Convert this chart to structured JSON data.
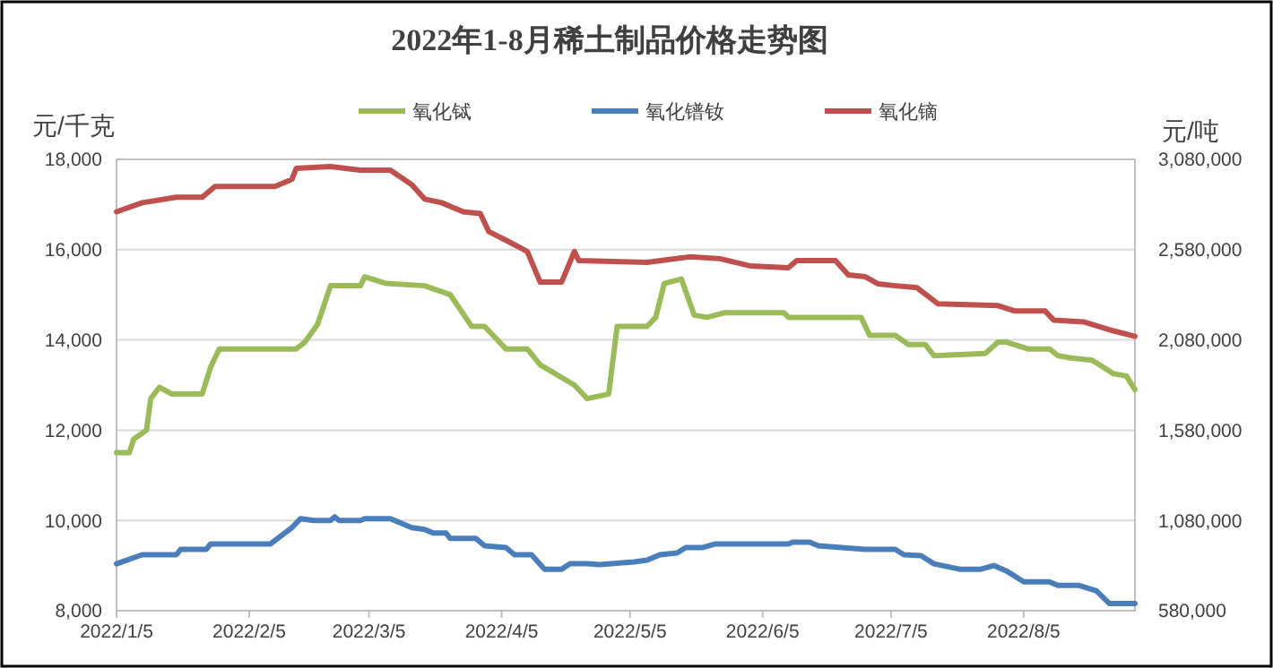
{
  "chart_data": {
    "type": "line",
    "title": "2022年1-8月稀土制品价格走势图",
    "ylabel": "元/千克",
    "y2label": "元/吨",
    "xlim": [
      "2022-01-05",
      "2022-08-31"
    ],
    "xticks": [
      {
        "value": "2022-01-05",
        "label": "2022/1/5"
      },
      {
        "value": "2022-02-05",
        "label": "2022/2/5"
      },
      {
        "value": "2022-03-05",
        "label": "2022/3/5"
      },
      {
        "value": "2022-04-05",
        "label": "2022/4/5"
      },
      {
        "value": "2022-05-05",
        "label": "2022/5/5"
      },
      {
        "value": "2022-06-05",
        "label": "2022/6/5"
      },
      {
        "value": "2022-07-05",
        "label": "2022/7/5"
      },
      {
        "value": "2022-08-05",
        "label": "2022/8/5"
      }
    ],
    "ylim": [
      8000,
      18000
    ],
    "yticks": [
      {
        "value": 8000,
        "label": "8,000"
      },
      {
        "value": 10000,
        "label": "10,000"
      },
      {
        "value": 12000,
        "label": "12,000"
      },
      {
        "value": 14000,
        "label": "14,000"
      },
      {
        "value": 16000,
        "label": "16,000"
      },
      {
        "value": 18000,
        "label": "18,000"
      }
    ],
    "y2lim": [
      580000,
      3080000
    ],
    "y2ticks": [
      {
        "value": 580000,
        "label": "580,000"
      },
      {
        "value": 1080000,
        "label": "1,080,000"
      },
      {
        "value": 1580000,
        "label": "1,580,000"
      },
      {
        "value": 2080000,
        "label": "2,080,000"
      },
      {
        "value": 2580000,
        "label": "2,580,000"
      },
      {
        "value": 3080000,
        "label": "3,080,000"
      }
    ],
    "grid": "y",
    "legend": "top",
    "marker": "none",
    "line_style": "solid",
    "series": [
      {
        "name": "氧化铽",
        "color": "#9bbb59",
        "x": [
          "2022-01-05",
          "2022-01-08",
          "2022-01-09",
          "2022-01-12",
          "2022-01-13",
          "2022-01-15",
          "2022-01-18",
          "2022-01-25",
          "2022-01-27",
          "2022-01-29",
          "2022-02-16",
          "2022-02-18",
          "2022-02-21",
          "2022-02-24",
          "2022-03-03",
          "2022-03-04",
          "2022-03-09",
          "2022-03-18",
          "2022-03-24",
          "2022-03-29",
          "2022-04-01",
          "2022-04-06",
          "2022-04-11",
          "2022-04-14",
          "2022-04-22",
          "2022-04-25",
          "2022-04-30",
          "2022-05-02",
          "2022-05-09",
          "2022-05-11",
          "2022-05-13",
          "2022-05-17",
          "2022-05-20",
          "2022-05-23",
          "2022-05-27",
          "2022-06-10",
          "2022-06-11",
          "2022-06-28",
          "2022-06-30",
          "2022-07-06",
          "2022-07-09",
          "2022-07-13",
          "2022-07-15",
          "2022-07-27",
          "2022-07-30",
          "2022-08-01",
          "2022-08-06",
          "2022-08-11",
          "2022-08-13",
          "2022-08-16",
          "2022-08-21",
          "2022-08-26",
          "2022-08-29",
          "2022-08-31"
        ],
        "values": [
          11500,
          11500,
          11800,
          12000,
          12700,
          12950,
          12800,
          12800,
          13400,
          13800,
          13800,
          13950,
          14350,
          15200,
          15200,
          15400,
          15250,
          15200,
          15000,
          14300,
          14300,
          13800,
          13800,
          13450,
          13000,
          12700,
          12800,
          14300,
          14300,
          14500,
          15250,
          15350,
          14550,
          14500,
          14600,
          14600,
          14500,
          14500,
          14100,
          14100,
          13900,
          13900,
          13650,
          13700,
          13950,
          13950,
          13800,
          13800,
          13650,
          13600,
          13550,
          13250,
          13200,
          12900
        ]
      },
      {
        "name": "氧化镨钕",
        "color": "#4a7ebb",
        "axis": "y2",
        "x": [
          "2022-01-05",
          "2022-01-11",
          "2022-01-19",
          "2022-01-20",
          "2022-01-26",
          "2022-01-27",
          "2022-02-10",
          "2022-02-13",
          "2022-02-15",
          "2022-02-17",
          "2022-02-20",
          "2022-02-24",
          "2022-02-25",
          "2022-02-26",
          "2022-03-03",
          "2022-03-04",
          "2022-03-10",
          "2022-03-15",
          "2022-03-18",
          "2022-03-20",
          "2022-03-23",
          "2022-03-24",
          "2022-03-30",
          "2022-04-01",
          "2022-04-06",
          "2022-04-08",
          "2022-04-12",
          "2022-04-15",
          "2022-04-19",
          "2022-04-21",
          "2022-04-25",
          "2022-04-28",
          "2022-05-06",
          "2022-05-09",
          "2022-05-12",
          "2022-05-16",
          "2022-05-18",
          "2022-05-22",
          "2022-05-25",
          "2022-06-11",
          "2022-06-12",
          "2022-06-16",
          "2022-06-18",
          "2022-06-29",
          "2022-07-06",
          "2022-07-08",
          "2022-07-12",
          "2022-07-15",
          "2022-07-21",
          "2022-07-26",
          "2022-07-29",
          "2022-08-01",
          "2022-08-05",
          "2022-08-11",
          "2022-08-13",
          "2022-08-18",
          "2022-08-22",
          "2022-08-25",
          "2022-08-31"
        ],
        "values": [
          840000,
          890000,
          890000,
          920000,
          920000,
          950000,
          950000,
          1005000,
          1040000,
          1090000,
          1080000,
          1080000,
          1100000,
          1080000,
          1080000,
          1090000,
          1090000,
          1040000,
          1030000,
          1010000,
          1010000,
          980000,
          980000,
          940000,
          930000,
          890000,
          890000,
          810000,
          810000,
          840000,
          840000,
          835000,
          850000,
          860000,
          890000,
          900000,
          930000,
          930000,
          950000,
          950000,
          960000,
          960000,
          940000,
          920000,
          920000,
          890000,
          885000,
          840000,
          810000,
          810000,
          830000,
          800000,
          740000,
          740000,
          720000,
          720000,
          690000,
          620000,
          620000
        ]
      },
      {
        "name": "氧化镝",
        "color": "#c0504d",
        "axis": "y2",
        "x": [
          "2022-01-05",
          "2022-01-11",
          "2022-01-19",
          "2022-01-25",
          "2022-01-28",
          "2022-02-11",
          "2022-02-15",
          "2022-02-16",
          "2022-02-24",
          "2022-03-03",
          "2022-03-10",
          "2022-03-15",
          "2022-03-18",
          "2022-03-22",
          "2022-03-27",
          "2022-03-31",
          "2022-04-02",
          "2022-04-07",
          "2022-04-11",
          "2022-04-14",
          "2022-04-19",
          "2022-04-22",
          "2022-04-23",
          "2022-05-09",
          "2022-05-19",
          "2022-05-26",
          "2022-06-02",
          "2022-06-11",
          "2022-06-13",
          "2022-06-22",
          "2022-06-25",
          "2022-06-29",
          "2022-07-02",
          "2022-07-06",
          "2022-07-11",
          "2022-07-16",
          "2022-07-30",
          "2022-08-03",
          "2022-08-10",
          "2022-08-12",
          "2022-08-19",
          "2022-08-26",
          "2022-08-31"
        ],
        "values": [
          2790000,
          2840000,
          2870000,
          2870000,
          2930000,
          2930000,
          2970000,
          3030000,
          3040000,
          3020000,
          3020000,
          2940000,
          2860000,
          2840000,
          2790000,
          2780000,
          2680000,
          2620000,
          2570000,
          2400000,
          2400000,
          2570000,
          2520000,
          2510000,
          2540000,
          2530000,
          2490000,
          2480000,
          2520000,
          2520000,
          2440000,
          2430000,
          2390000,
          2380000,
          2370000,
          2280000,
          2270000,
          2240000,
          2240000,
          2190000,
          2180000,
          2130000,
          2100000
        ]
      }
    ]
  }
}
